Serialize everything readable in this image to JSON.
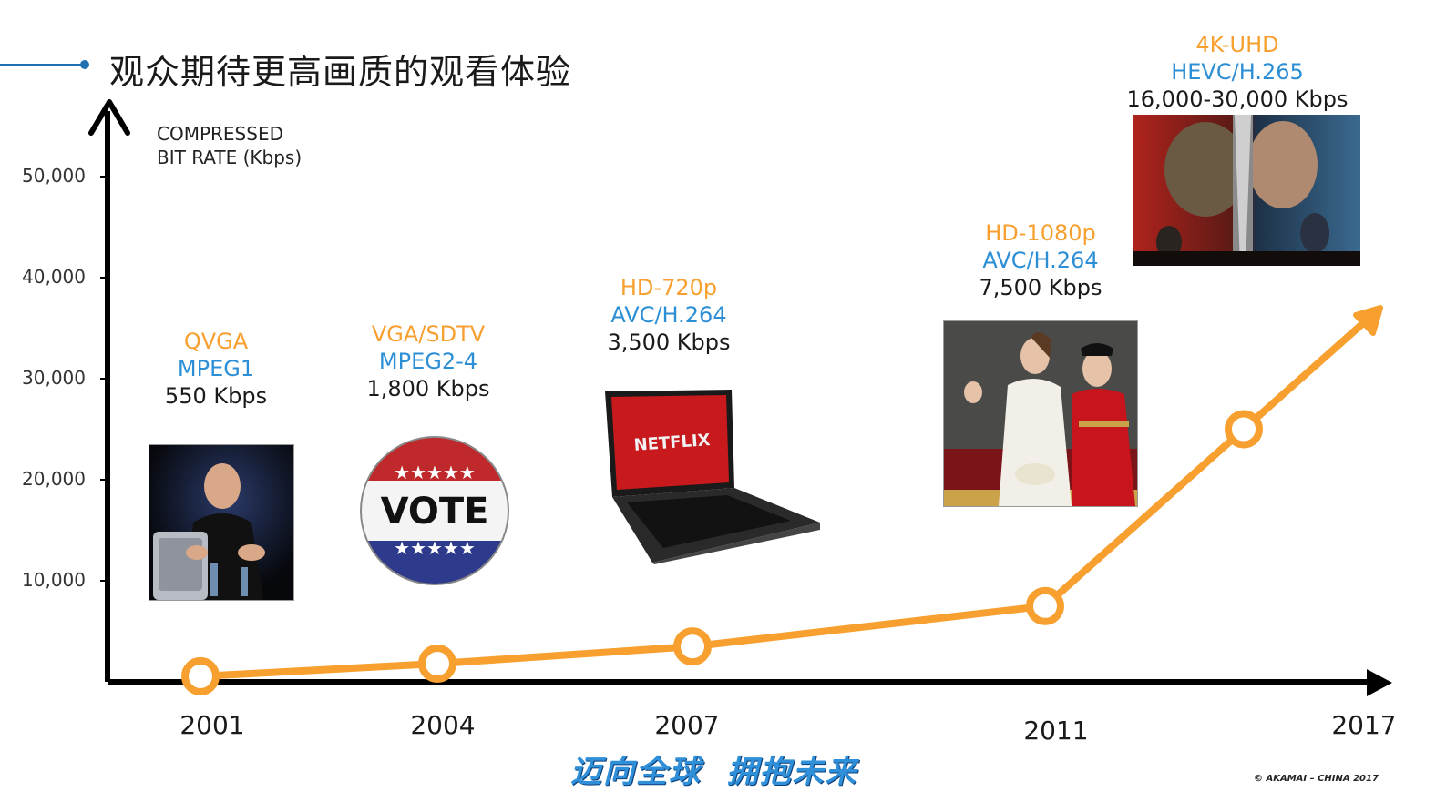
{
  "header": {
    "title": "观众期待更高画质的观看体验"
  },
  "chart_data": {
    "type": "line",
    "title": "",
    "ylabel": "COMPRESSED\nBIT RATE (Kbps)",
    "xlabel": "",
    "x": [
      "2001",
      "2004",
      "2007",
      "2011",
      "2017"
    ],
    "yticks": [
      "10,000",
      "20,000",
      "30,000",
      "40,000",
      "50,000"
    ],
    "ytick_values": [
      10000,
      20000,
      30000,
      40000,
      50000
    ],
    "ylim": [
      0,
      55000
    ],
    "grid": false,
    "series": [
      {
        "values": [
          550,
          1800,
          3500,
          7500,
          25000
        ]
      }
    ],
    "trend_arrow": true,
    "line_color": "#f7a030",
    "annotations": [
      {
        "resolution": "QVGA",
        "codec": "MPEG1",
        "bitrate": "550 Kbps",
        "image": "presenter-photo"
      },
      {
        "resolution": "VGA/SDTV",
        "codec": "MPEG2-4",
        "bitrate": "1,800 Kbps",
        "image": "vote-button"
      },
      {
        "resolution": "HD-720p",
        "codec": "AVC/H.264",
        "bitrate": "3,500 Kbps",
        "image": "netflix-laptop"
      },
      {
        "resolution": "HD-1080p",
        "codec": "AVC/H.264",
        "bitrate": "7,500 Kbps",
        "image": "royal-wedding-photo"
      },
      {
        "resolution": "4K-UHD",
        "codec": "HEVC/H.265",
        "bitrate": "16,000-30,000 Kbps",
        "image": "warcraft-movie-poster"
      }
    ]
  },
  "images": {
    "vote_text": "VOTE",
    "netflix_text": "NETFLIX"
  },
  "footer": {
    "slogan": "迈向全球  拥抱未来",
    "copyright": "© AKAMAI – CHINA 2017"
  },
  "colors": {
    "accent_orange": "#f7a030",
    "accent_blue": "#2c8fd6",
    "title_rule": "#1f6fb2",
    "axis": "#000000"
  }
}
